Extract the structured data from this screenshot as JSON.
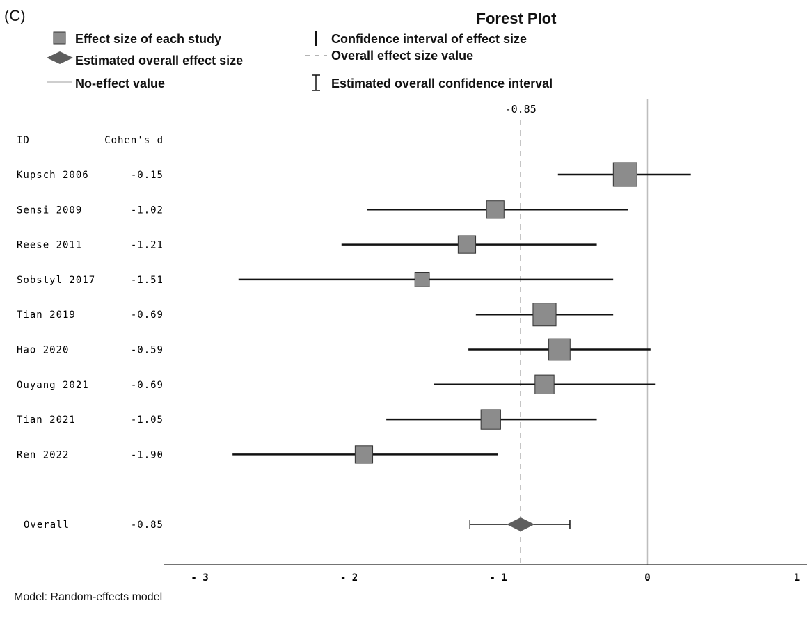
{
  "panel_label": "(C)",
  "legend": {
    "study_effect": "Effect size of each study",
    "overall_effect": "Estimated overall effect size",
    "no_effect": "No-effect value",
    "ci_effect": "Confidence interval of effect size",
    "overall_value": "Overall effect size value",
    "overall_ci": "Estimated overall confidence interval"
  },
  "footnote": "Model: Random-effects model",
  "colors": {
    "box_fill": "#8c8c8c",
    "diamond_fill": "#5e5e5e",
    "line": "#111111",
    "no_effect_line": "#bdbdbd",
    "overall_dashed": "#9a9a9a"
  },
  "chart_data": {
    "type": "forest",
    "title": "Forest Plot",
    "col_id": "ID",
    "col_d": "Cohen's d",
    "overall_value_label": "-0.85",
    "xlim": [
      -3,
      1
    ],
    "xticks": [
      -3,
      -2,
      -1,
      0,
      1
    ],
    "xtick_labels": [
      "- 3",
      "- 2",
      "- 1",
      "0",
      "1"
    ],
    "no_effect_value": 0,
    "studies": [
      {
        "id": "Kupsch 2006",
        "d": -0.15,
        "d_label": "-0.15",
        "ci": [
          -0.6,
          0.29
        ],
        "weight": 1.0
      },
      {
        "id": "Sensi 2009",
        "d": -1.02,
        "d_label": "-1.02",
        "ci": [
          -1.88,
          -0.13
        ],
        "weight": 0.6
      },
      {
        "id": "Reese 2011",
        "d": -1.21,
        "d_label": "-1.21",
        "ci": [
          -2.05,
          -0.34
        ],
        "weight": 0.6
      },
      {
        "id": "Sobstyl 2017",
        "d": -1.51,
        "d_label": "-1.51",
        "ci": [
          -2.74,
          -0.23
        ],
        "weight": 0.4
      },
      {
        "id": "Tian 2019",
        "d": -0.69,
        "d_label": "-0.69",
        "ci": [
          -1.15,
          -0.23
        ],
        "weight": 0.96
      },
      {
        "id": "Hao 2020",
        "d": -0.59,
        "d_label": "-0.59",
        "ci": [
          -1.2,
          0.02
        ],
        "weight": 0.85
      },
      {
        "id": "Ouyang 2021",
        "d": -0.69,
        "d_label": "-0.69",
        "ci": [
          -1.43,
          0.05
        ],
        "weight": 0.7
      },
      {
        "id": "Tian 2021",
        "d": -1.05,
        "d_label": "-1.05",
        "ci": [
          -1.75,
          -0.34
        ],
        "weight": 0.74
      },
      {
        "id": "Ren 2022",
        "d": -1.9,
        "d_label": "-1.90",
        "ci": [
          -2.78,
          -1.0
        ],
        "weight": 0.6
      }
    ],
    "overall": {
      "id": "Overall",
      "d": -0.85,
      "d_label": "-0.85",
      "ci": [
        -1.19,
        -0.52
      ]
    }
  }
}
